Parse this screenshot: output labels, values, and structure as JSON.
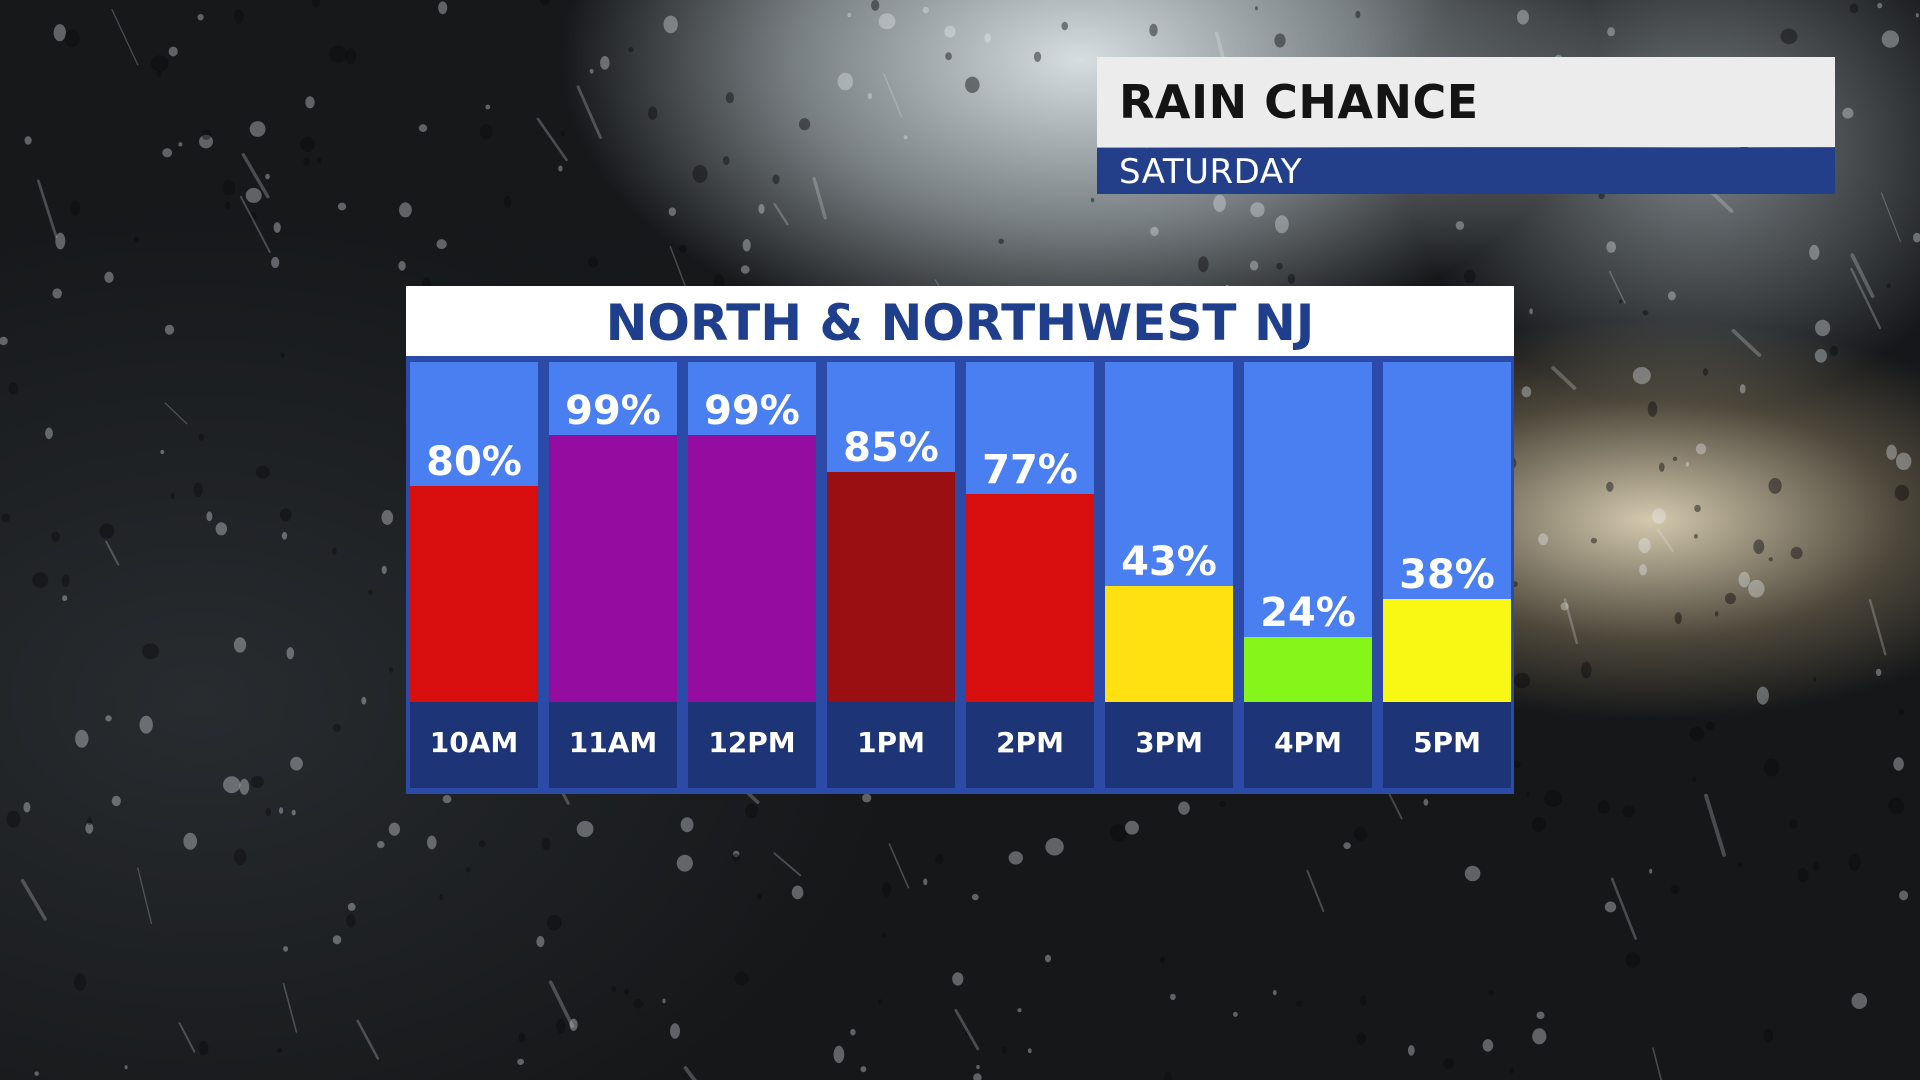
{
  "header": {
    "title": "RAIN CHANCE",
    "subtitle": "SATURDAY"
  },
  "colors": {
    "title_bg": "#ececec",
    "subtitle_bg": "#233f8a",
    "chart_header_text": "#1f3e8c",
    "column_bg": "#4a7ff2",
    "label_bg": "#1d3477"
  },
  "chart_data": {
    "type": "bar",
    "title": "NORTH & NORTHWEST NJ",
    "categories": [
      "10AM",
      "11AM",
      "12PM",
      "1PM",
      "2PM",
      "3PM",
      "4PM",
      "5PM"
    ],
    "values": [
      80,
      99,
      99,
      85,
      77,
      43,
      24,
      38
    ],
    "value_labels": [
      "80%",
      "99%",
      "99%",
      "85%",
      "77%",
      "43%",
      "24%",
      "38%"
    ],
    "bar_colors": [
      "#d90e0e",
      "#950ca0",
      "#950ca0",
      "#9a0f12",
      "#d90e0e",
      "#ffe010",
      "#85f51a",
      "#f8f814"
    ],
    "ylim": [
      0,
      100
    ],
    "grid": false,
    "legend": "none"
  }
}
